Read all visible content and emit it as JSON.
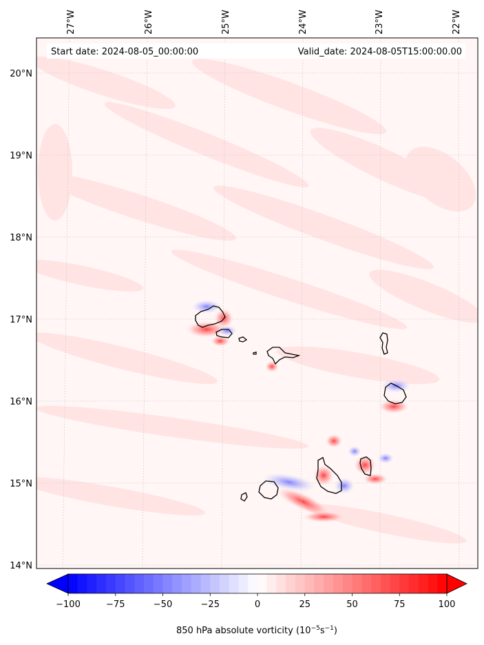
{
  "map": {
    "start_label": "Start date: 2024-08-05_00:00:00",
    "valid_label": "Valid_date: 2024-08-05T15:00:00.00",
    "lon_ticks": [
      "27°W",
      "26°W",
      "25°W",
      "24°W",
      "23°W",
      "22°W"
    ],
    "lat_ticks": [
      "20°N",
      "19°N",
      "18°N",
      "17°N",
      "16°N",
      "15°N",
      "14°N"
    ],
    "background_color": "#fff4f3",
    "coast_color": "#000000"
  },
  "colorbar": {
    "ticks": [
      "−100",
      "−75",
      "−50",
      "−25",
      "0",
      "25",
      "50",
      "75",
      "100"
    ],
    "min": -100,
    "max": 100,
    "low_color": "#0000ff",
    "high_color": "#ff0000",
    "mid_color": "#ffffff",
    "label_prefix": "850 hPa absolute vorticity (10",
    "label_exp1": "−5",
    "label_mid": "s",
    "label_exp2": "−1",
    "label_suffix": ")"
  }
}
